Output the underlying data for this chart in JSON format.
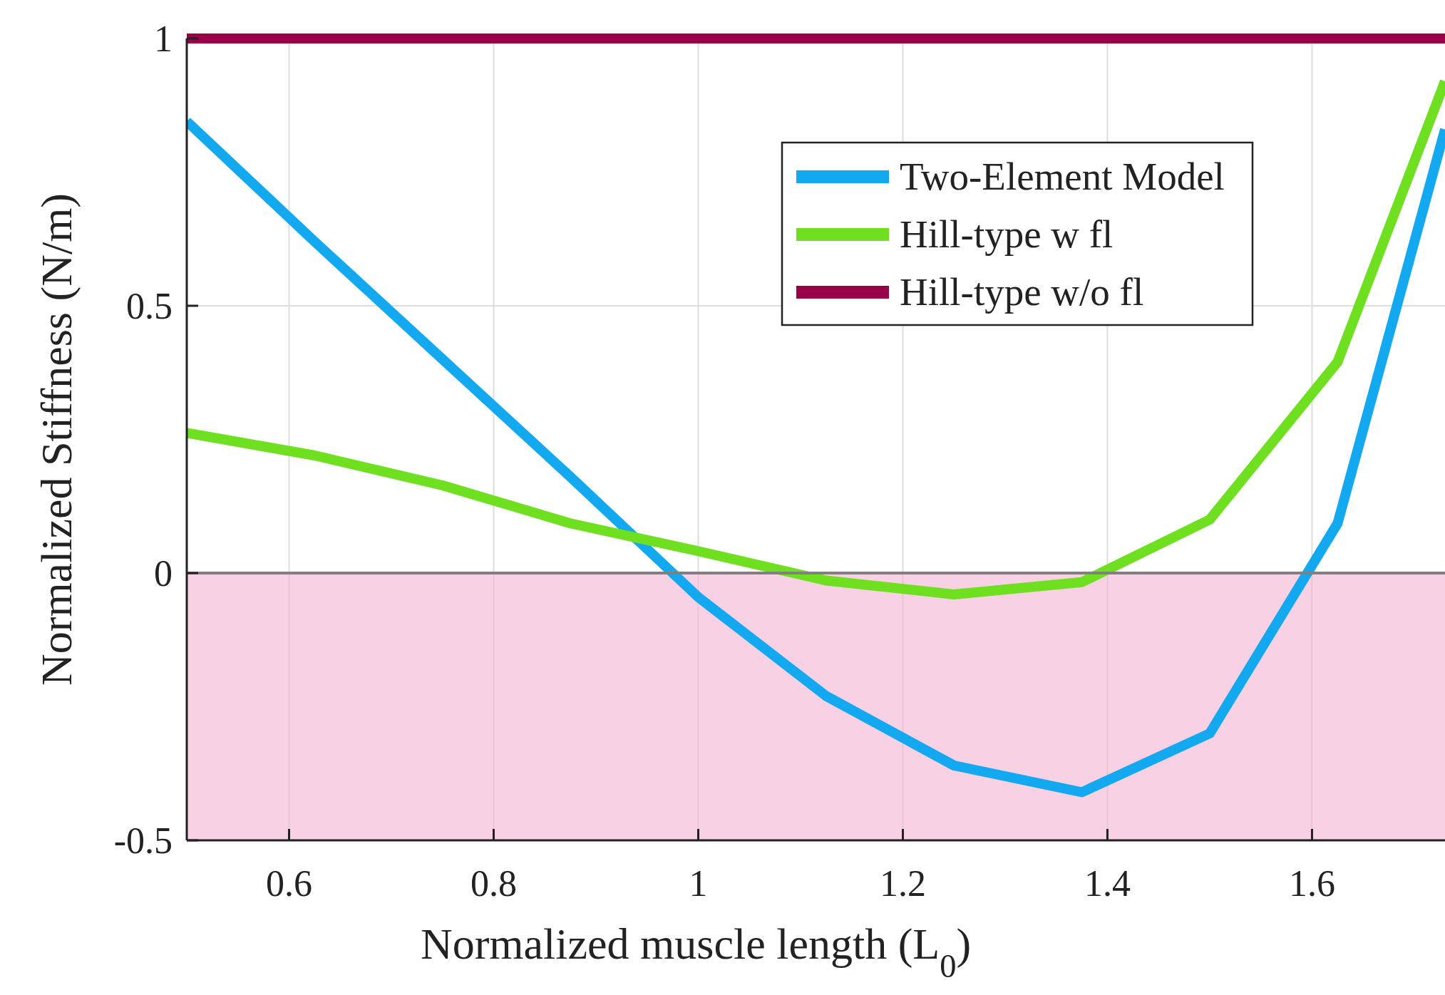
{
  "chart_data": {
    "type": "line",
    "xlabel": "Normalized muscle length (L$_{0}$)",
    "ylabel": "Normalized Stiffness (N/m)",
    "xlim": [
      0.5,
      1.73
    ],
    "ylim": [
      -0.5,
      1
    ],
    "xticks": [
      0.6,
      0.8,
      1,
      1.2,
      1.4,
      1.6
    ],
    "yticks": [
      -0.5,
      0,
      0.5,
      1
    ],
    "grid": true,
    "legend": "top right",
    "marker": "none",
    "line_style": "solid",
    "x": [
      0.5,
      0.625,
      0.75,
      0.875,
      1,
      1.125,
      1.25,
      1.375,
      1.5,
      1.625,
      1.73
    ],
    "series": [
      {
        "name": "Two-Element Model",
        "color": "#12a9f0",
        "values": [
          0.845,
          0.62,
          0.4,
          0.18,
          -0.045,
          -0.23,
          -0.36,
          -0.41,
          -0.3,
          0.093,
          0.83
        ]
      },
      {
        "name": "Hill-type w fl",
        "color": "#6ee020",
        "values": [
          0.262,
          0.22,
          0.164,
          0.093,
          0.041,
          -0.014,
          -0.04,
          -0.017,
          0.1,
          0.395,
          0.92
        ]
      },
      {
        "name": "Hill-type w/o fl",
        "color": "#990047",
        "values": [
          1,
          1,
          1,
          1,
          1,
          1,
          1,
          1,
          1,
          1,
          1
        ]
      }
    ],
    "ref_lines": [
      {
        "axis": "y",
        "value": 0,
        "color": "#808080"
      }
    ],
    "bands": [
      {
        "axis": "y",
        "from": -0.5,
        "to": 0,
        "color": "#f5b3d4"
      }
    ]
  }
}
